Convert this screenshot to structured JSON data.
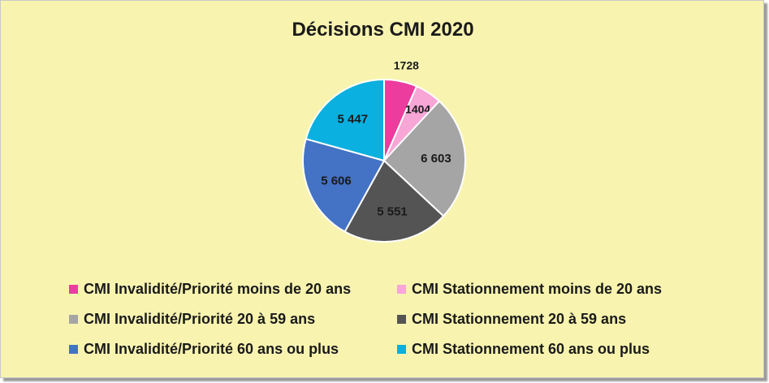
{
  "chart_data": {
    "type": "pie",
    "title": "Décisions CMI 2020",
    "slices": [
      {
        "label": "CMI Invalidité/Priorité moins de 20 ans",
        "value": 1728,
        "display": "1728",
        "color": "#ec3c9e"
      },
      {
        "label": "CMI Stationnement moins de 20 ans",
        "value": 1404,
        "display": "1404",
        "color": "#f7a6d6"
      },
      {
        "label": "CMI Invalidité/Priorité 20 à 59 ans",
        "value": 6603,
        "display": "6 603",
        "color": "#a5a5a5"
      },
      {
        "label": "CMI Stationnement 20 à 59 ans",
        "value": 5551,
        "display": "5 551",
        "color": "#545454"
      },
      {
        "label": "CMI Invalidité/Priorité 60 ans ou plus",
        "value": 5606,
        "display": "5 606",
        "color": "#4472c4"
      },
      {
        "label": "CMI Stationnement 60 ans ou plus",
        "value": 5447,
        "display": "5 447",
        "color": "#0ab0df"
      }
    ],
    "legend_position": "bottom"
  }
}
